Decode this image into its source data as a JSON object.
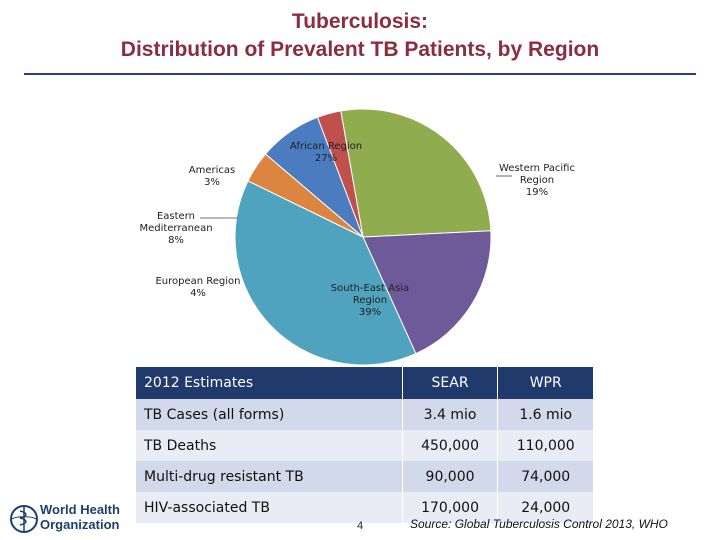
{
  "title": {
    "line1": "Tuberculosis:",
    "line2": "Distribution of Prevalent TB Patients, by Region"
  },
  "chart_data": {
    "type": "pie",
    "slices": [
      {
        "label": "African Region",
        "pct_label": "27%",
        "value": 27,
        "color": "#8fac4e"
      },
      {
        "label": "Western Pacific Region",
        "pct_label": "19%",
        "value": 19,
        "color": "#6e5a98"
      },
      {
        "label": "South-East Asia Region",
        "pct_label": "39%",
        "value": 39,
        "color": "#4fa3be"
      },
      {
        "label": "European Region",
        "pct_label": "4%",
        "value": 4,
        "color": "#dc8541"
      },
      {
        "label": "Eastern Mediterranean",
        "pct_label": "8%",
        "value": 8,
        "color": "#4a7cbf"
      },
      {
        "label": "Americas",
        "pct_label": "3%",
        "value": 3,
        "color": "#c0504d"
      }
    ]
  },
  "table": {
    "headers": [
      "2012 Estimates",
      "SEAR",
      "WPR"
    ],
    "rows": [
      [
        "TB Cases (all forms)",
        "3.4 mio",
        "1.6 mio"
      ],
      [
        "TB Deaths",
        "450,000",
        "110,000"
      ],
      [
        "Multi-drug resistant TB",
        "90,000",
        "74,000"
      ],
      [
        "HIV-associated TB",
        "170,000",
        "24,000"
      ]
    ]
  },
  "footer": {
    "logo_line1": "World Health",
    "logo_line2": "Organization",
    "page_number": "4",
    "source": "Source: Global Tuberculosis Control 2013, WHO"
  },
  "colors": {
    "title": "#8b2c3f",
    "rule": "#2e3f80",
    "table_header": "#1f3a6b"
  }
}
